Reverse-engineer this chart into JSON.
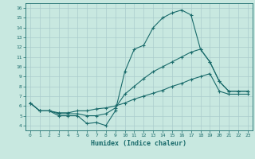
{
  "xlabel": "Humidex (Indice chaleur)",
  "bg_color": "#c8e8e0",
  "line_color": "#1a6b6b",
  "grid_color": "#aacccc",
  "xlim": [
    -0.5,
    23.5
  ],
  "ylim": [
    3.5,
    16.5
  ],
  "xticks": [
    0,
    1,
    2,
    3,
    4,
    5,
    6,
    7,
    8,
    9,
    10,
    11,
    12,
    13,
    14,
    15,
    16,
    17,
    18,
    19,
    20,
    21,
    22,
    23
  ],
  "yticks": [
    4,
    5,
    6,
    7,
    8,
    9,
    10,
    11,
    12,
    13,
    14,
    15,
    16
  ],
  "curve1_x": [
    0,
    1,
    2,
    3,
    4,
    5,
    6,
    7,
    8,
    9,
    10,
    11,
    12,
    13,
    14,
    15,
    16,
    17,
    18,
    19,
    20,
    21,
    22,
    23
  ],
  "curve1_y": [
    6.3,
    5.5,
    5.5,
    5.0,
    5.0,
    5.0,
    4.2,
    4.3,
    4.0,
    5.5,
    9.5,
    11.8,
    12.2,
    14.0,
    15.0,
    15.5,
    15.8,
    15.3,
    11.8,
    10.5,
    8.5,
    7.5,
    7.5,
    7.5
  ],
  "curve2_x": [
    0,
    1,
    2,
    3,
    4,
    5,
    6,
    7,
    8,
    9,
    10,
    11,
    12,
    13,
    14,
    15,
    16,
    17,
    18,
    19,
    20,
    21,
    22,
    23
  ],
  "curve2_y": [
    6.3,
    5.5,
    5.5,
    5.2,
    5.2,
    5.2,
    5.0,
    5.0,
    5.2,
    5.8,
    7.2,
    8.0,
    8.8,
    9.5,
    10.0,
    10.5,
    11.0,
    11.5,
    11.8,
    10.5,
    8.5,
    7.5,
    7.5,
    7.5
  ],
  "curve3_x": [
    0,
    1,
    2,
    3,
    4,
    5,
    6,
    7,
    8,
    9,
    10,
    11,
    12,
    13,
    14,
    15,
    16,
    17,
    18,
    19,
    20,
    21,
    22,
    23
  ],
  "curve3_y": [
    6.3,
    5.5,
    5.5,
    5.3,
    5.3,
    5.5,
    5.5,
    5.7,
    5.8,
    6.0,
    6.3,
    6.7,
    7.0,
    7.3,
    7.6,
    8.0,
    8.3,
    8.7,
    9.0,
    9.3,
    7.5,
    7.2,
    7.2,
    7.2
  ]
}
